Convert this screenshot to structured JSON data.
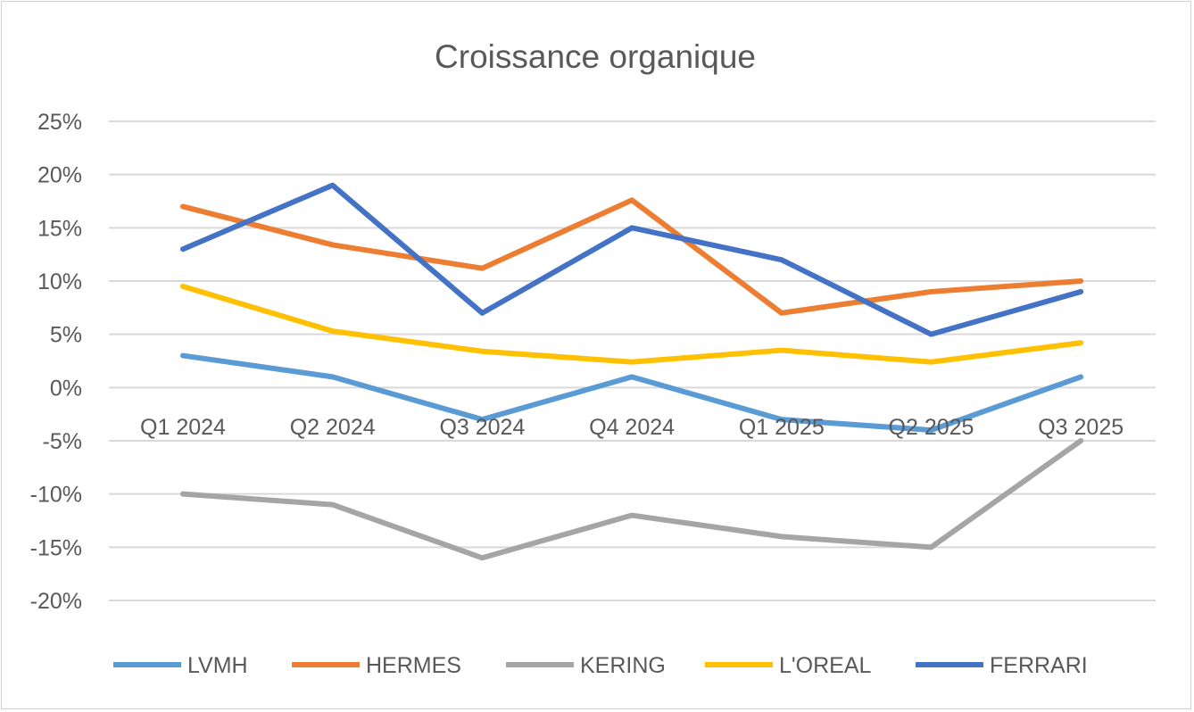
{
  "chart_data": {
    "type": "line",
    "title": "Croissance organique",
    "xlabel": "",
    "ylabel": "",
    "categories": [
      "Q1 2024",
      "Q2 2024",
      "Q3 2024",
      "Q4 2024",
      "Q1 2025",
      "Q2 2025",
      "Q3 2025"
    ],
    "ylim": [
      -20,
      25
    ],
    "yticks": [
      25,
      20,
      15,
      10,
      5,
      0,
      -5,
      -10,
      -15,
      -20
    ],
    "ytick_labels": [
      "25%",
      "20%",
      "15%",
      "10%",
      "5%",
      "0%",
      "-5%",
      "-10%",
      "-15%",
      "-20%"
    ],
    "grid": true,
    "legend_position": "bottom",
    "series": [
      {
        "name": "LVMH",
        "color": "#5B9BD5",
        "values": [
          3,
          1,
          -3,
          1,
          -3,
          -4,
          1
        ]
      },
      {
        "name": "HERMES",
        "color": "#ED7D31",
        "values": [
          17,
          13.4,
          11.2,
          17.6,
          7,
          9,
          10
        ]
      },
      {
        "name": "KERING",
        "color": "#A5A5A5",
        "values": [
          -10,
          -11,
          -16,
          -12,
          -14,
          -15,
          -5
        ]
      },
      {
        "name": "L'OREAL",
        "color": "#FFC000",
        "values": [
          9.5,
          5.3,
          3.4,
          2.4,
          3.5,
          2.4,
          4.2
        ]
      },
      {
        "name": "FERRARI",
        "color": "#4472C4",
        "values": [
          13,
          19,
          7,
          15,
          12,
          5,
          9
        ]
      }
    ]
  }
}
